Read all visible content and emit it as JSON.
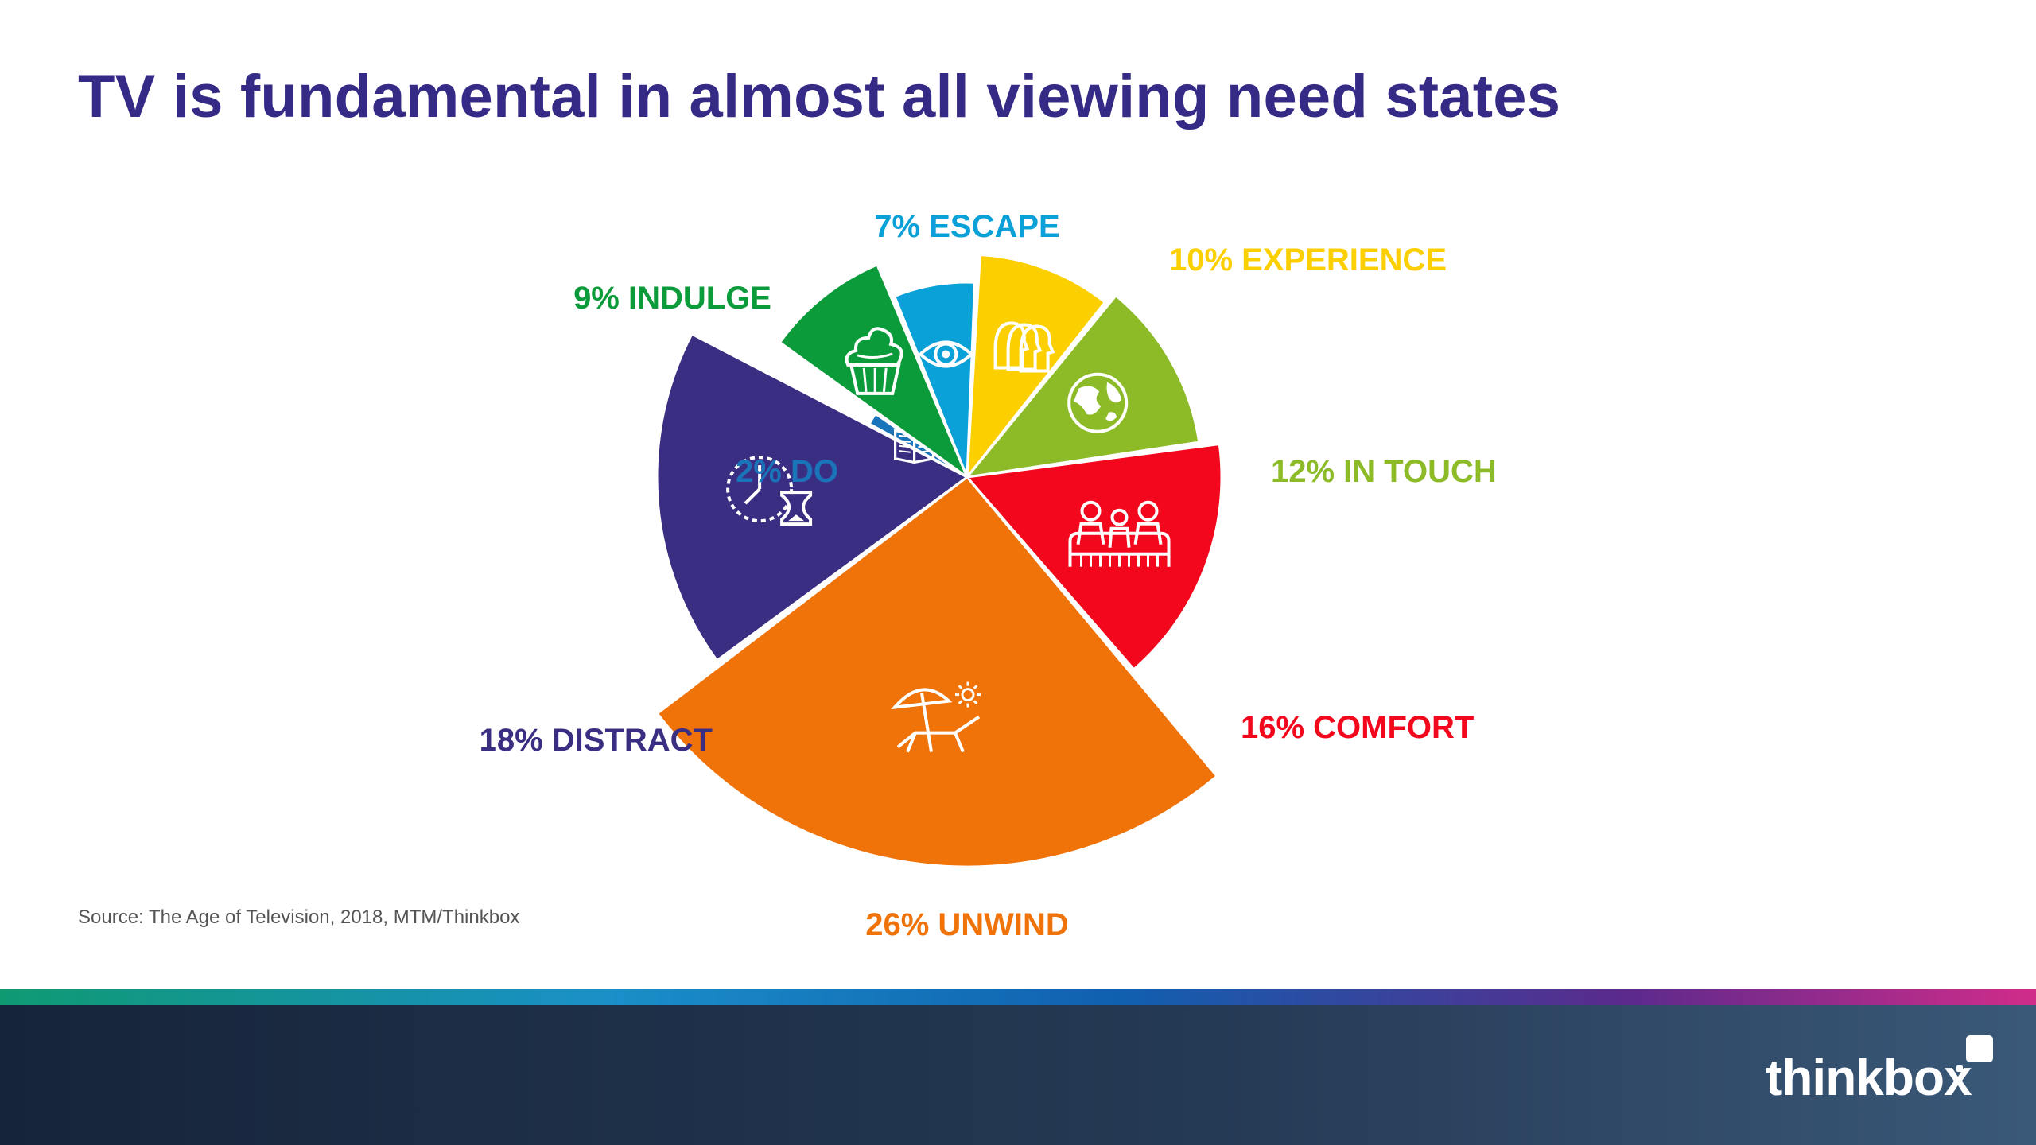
{
  "title": "TV is fundamental in almost all viewing need states",
  "source": "Source: The Age of Television, 2018, MTM/Thinkbox",
  "brand": "thinkbox",
  "chart_data": {
    "type": "pie",
    "title": "",
    "series": [
      {
        "name": "ESCAPE",
        "value": 7,
        "label": "7% ESCAPE",
        "color": "#0aa0d8",
        "icon": "eye-icon"
      },
      {
        "name": "EXPERIENCE",
        "value": 10,
        "label": "10% EXPERIENCE",
        "color": "#fccf00",
        "icon": "people-heads-icon"
      },
      {
        "name": "IN TOUCH",
        "value": 12,
        "label": "12% IN TOUCH",
        "color": "#8cbb27",
        "icon": "globe-icon"
      },
      {
        "name": "COMFORT",
        "value": 16,
        "label": "16% COMFORT",
        "color": "#f2071c",
        "icon": "family-sofa-icon"
      },
      {
        "name": "UNWIND",
        "value": 26,
        "label": "26% UNWIND",
        "color": "#ef7309",
        "icon": "beach-lounger-icon"
      },
      {
        "name": "DISTRACT",
        "value": 18,
        "label": "18% DISTRACT",
        "color": "#3a2e82",
        "icon": "clock-hourglass-icon"
      },
      {
        "name": "DO",
        "value": 2,
        "label": "2% DO",
        "color": "#1a74b9",
        "icon": "book-icon"
      },
      {
        "name": "INDULGE",
        "value": 9,
        "label": "9% INDULGE",
        "color": "#0c9b3a",
        "icon": "cupcake-icon"
      }
    ]
  }
}
